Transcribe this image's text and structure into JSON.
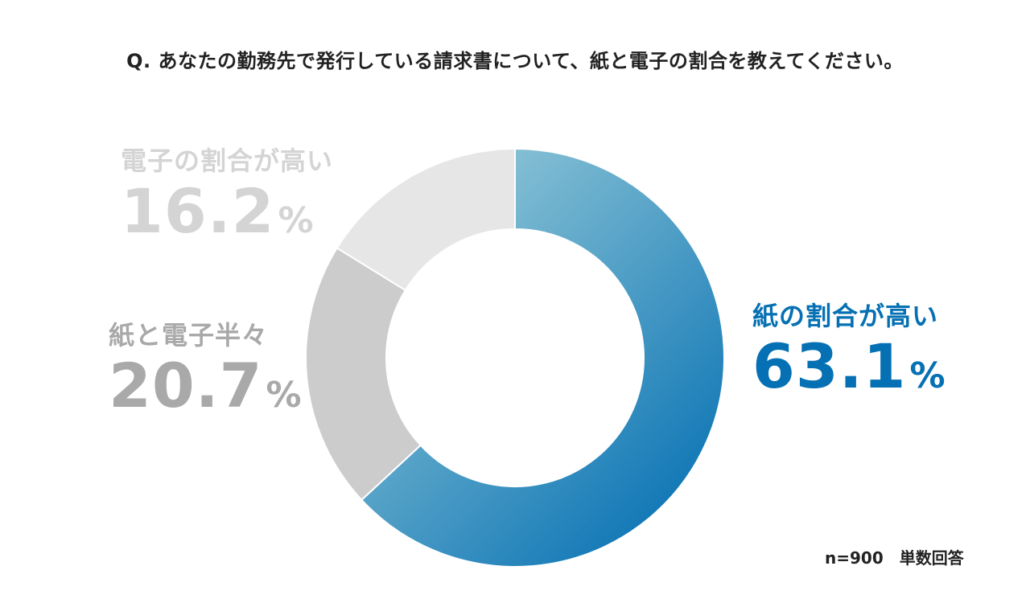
{
  "title": "Q. あなたの勤務先で発行している請求書について、紙と電子の割合を教えてください。",
  "note": "n=900　単数回答",
  "colors": {
    "paper_light": "#a6d4dc",
    "paper_dark": "#0570b3",
    "paper_text": "#0570b3",
    "half_fill": "#cccccc",
    "half_text": "#a9a9a9",
    "digital_fill": "#e6e6e6",
    "digital_text": "#d4d4d4"
  },
  "chart_data": {
    "type": "pie",
    "style": "donut",
    "start": "12 o'clock",
    "direction": "clockwise",
    "unit": "%",
    "slices": [
      {
        "label": "紙の割合が高い",
        "value": 63.1,
        "value_text": "63.1"
      },
      {
        "label": "紙と電子半々",
        "value": 20.7,
        "value_text": "20.7"
      },
      {
        "label": "電子の割合が高い",
        "value": 16.2,
        "value_text": "16.2"
      }
    ]
  }
}
